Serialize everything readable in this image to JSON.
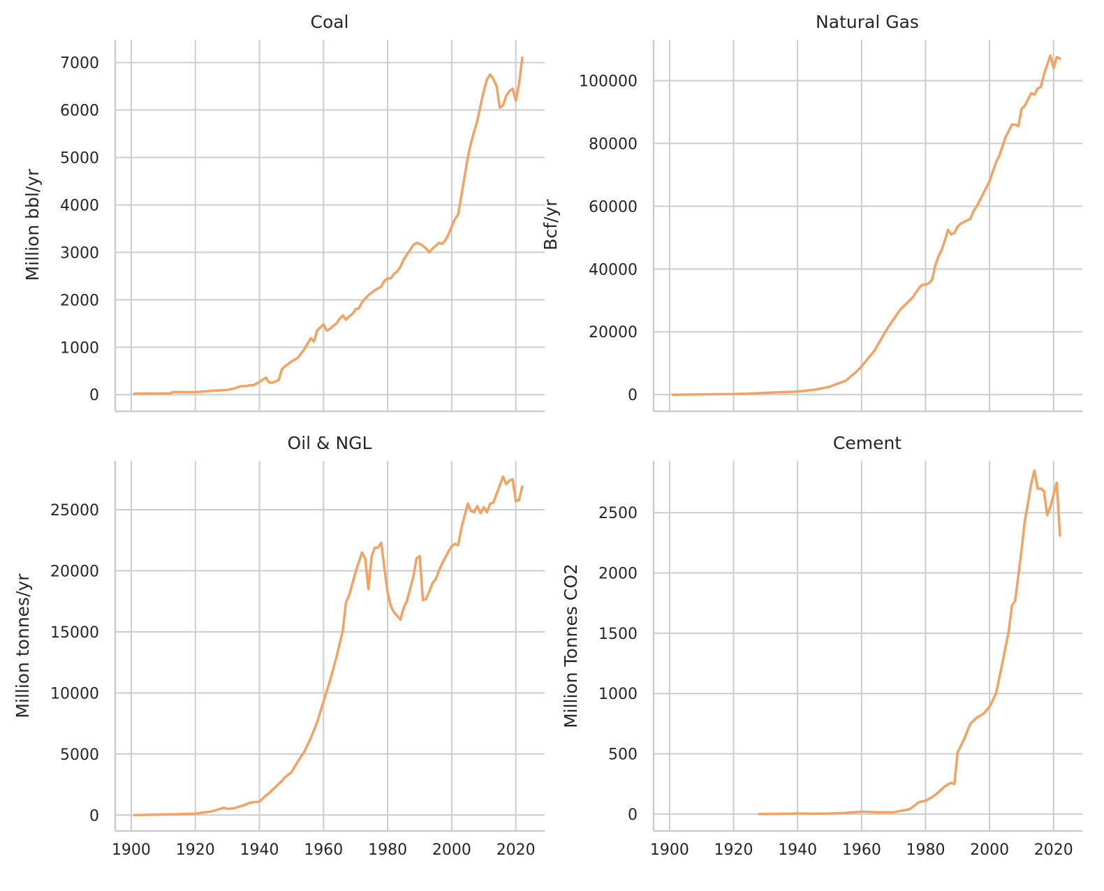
{
  "figure": {
    "line_color": "#f4a261",
    "grid_color": "#cccccc",
    "text_color": "#262626",
    "grid": true
  },
  "chart_data": [
    {
      "type": "line",
      "title": "Coal",
      "xlabel": "",
      "ylabel": "Million bbl/yr",
      "xlim": [
        1895,
        2029
      ],
      "ylim": [
        -350,
        7480
      ],
      "xticks": [
        1900,
        1920,
        1940,
        1960,
        1980,
        2000,
        2020
      ],
      "yticks": [
        0,
        1000,
        2000,
        3000,
        4000,
        5000,
        6000,
        7000
      ],
      "show_xticklabels": false,
      "series": [
        {
          "x": [
            1901,
            1905,
            1910,
            1912,
            1913,
            1920,
            1925,
            1930,
            1932,
            1934,
            1936,
            1937,
            1938,
            1940,
            1942,
            1943,
            1944,
            1946,
            1947,
            1948,
            1950,
            1952,
            1954,
            1956,
            1957,
            1958,
            1959,
            1960,
            1961,
            1962,
            1963,
            1964,
            1965,
            1966,
            1967,
            1968,
            1969,
            1970,
            1971,
            1972,
            1974,
            1976,
            1978,
            1979,
            1980,
            1981,
            1982,
            1983,
            1984,
            1985,
            1986,
            1987,
            1988,
            1989,
            1990,
            1991,
            1992,
            1993,
            1994,
            1995,
            1996,
            1997,
            1998,
            1999,
            2000,
            2001,
            2002,
            2003,
            2004,
            2005,
            2006,
            2007,
            2008,
            2009,
            2010,
            2011,
            2012,
            2013,
            2014,
            2015,
            2016,
            2017,
            2018,
            2019,
            2020,
            2021,
            2022
          ],
          "y": [
            20,
            25,
            25,
            25,
            55,
            55,
            80,
            100,
            130,
            175,
            185,
            200,
            195,
            270,
            360,
            260,
            250,
            310,
            540,
            600,
            700,
            780,
            960,
            1190,
            1120,
            1350,
            1420,
            1480,
            1350,
            1390,
            1450,
            1500,
            1600,
            1670,
            1580,
            1650,
            1700,
            1800,
            1820,
            1950,
            2100,
            2200,
            2280,
            2400,
            2450,
            2450,
            2550,
            2600,
            2700,
            2850,
            2950,
            3050,
            3150,
            3200,
            3180,
            3140,
            3080,
            3000,
            3080,
            3140,
            3200,
            3180,
            3250,
            3380,
            3550,
            3700,
            3800,
            4200,
            4600,
            5000,
            5300,
            5550,
            5780,
            6100,
            6400,
            6650,
            6750,
            6650,
            6500,
            6050,
            6100,
            6300,
            6400,
            6450,
            6200,
            6550,
            7100
          ]
        }
      ]
    },
    {
      "type": "line",
      "title": "Natural Gas",
      "xlabel": "",
      "ylabel": "Bcf/yr",
      "xlim": [
        1895,
        2029
      ],
      "ylim": [
        -5300,
        113000
      ],
      "xticks": [
        1900,
        1920,
        1940,
        1960,
        1980,
        2000,
        2020
      ],
      "yticks": [
        0,
        20000,
        40000,
        60000,
        80000,
        100000
      ],
      "show_xticklabels": false,
      "series": [
        {
          "x": [
            1901,
            1910,
            1920,
            1925,
            1930,
            1935,
            1940,
            1945,
            1950,
            1952,
            1955,
            1958,
            1960,
            1962,
            1964,
            1966,
            1968,
            1970,
            1972,
            1974,
            1976,
            1978,
            1979,
            1980,
            1981,
            1982,
            1983,
            1984,
            1985,
            1986,
            1987,
            1988,
            1989,
            1990,
            1991,
            1992,
            1993,
            1994,
            1995,
            1996,
            1997,
            1998,
            1999,
            2000,
            2001,
            2002,
            2003,
            2004,
            2005,
            2006,
            2007,
            2008,
            2009,
            2010,
            2011,
            2012,
            2013,
            2014,
            2015,
            2016,
            2017,
            2018,
            2019,
            2020,
            2021,
            2022
          ],
          "y": [
            0,
            100,
            200,
            300,
            600,
            800,
            1000,
            1500,
            2500,
            3300,
            4400,
            7000,
            9000,
            11500,
            14000,
            17500,
            21000,
            24000,
            27000,
            29000,
            31000,
            34000,
            35000,
            35000,
            35500,
            36500,
            41000,
            44000,
            46000,
            49000,
            52500,
            51000,
            51500,
            53500,
            54500,
            55000,
            55500,
            56000,
            58500,
            60000,
            62000,
            64000,
            66000,
            68000,
            71000,
            74000,
            76000,
            79000,
            82000,
            84000,
            86000,
            86000,
            85500,
            91000,
            92000,
            94000,
            96000,
            95500,
            97500,
            98000,
            102000,
            105000,
            108000,
            104000,
            107500,
            107000
          ]
        }
      ]
    },
    {
      "type": "line",
      "title": "Oil & NGL",
      "xlabel": "",
      "ylabel": "Million tonnes/yr",
      "xlim": [
        1895,
        2029
      ],
      "ylim": [
        -1300,
        29000
      ],
      "xticks": [
        1900,
        1920,
        1940,
        1960,
        1980,
        2000,
        2020
      ],
      "yticks": [
        0,
        5000,
        10000,
        15000,
        20000,
        25000
      ],
      "show_xticklabels": true,
      "series": [
        {
          "x": [
            1901,
            1905,
            1910,
            1915,
            1920,
            1925,
            1929,
            1930,
            1932,
            1935,
            1937,
            1938,
            1940,
            1942,
            1943,
            1945,
            1947,
            1948,
            1950,
            1952,
            1954,
            1956,
            1958,
            1960,
            1962,
            1964,
            1966,
            1967,
            1968,
            1970,
            1972,
            1973,
            1974,
            1975,
            1976,
            1977,
            1978,
            1979,
            1980,
            1981,
            1982,
            1983,
            1984,
            1985,
            1986,
            1987,
            1988,
            1989,
            1990,
            1991,
            1992,
            1993,
            1994,
            1995,
            1996,
            1997,
            1998,
            1999,
            2000,
            2001,
            2002,
            2003,
            2004,
            2005,
            2006,
            2007,
            2008,
            2009,
            2010,
            2011,
            2012,
            2013,
            2014,
            2015,
            2016,
            2017,
            2018,
            2019,
            2020,
            2021,
            2022
          ],
          "y": [
            0,
            20,
            50,
            80,
            120,
            300,
            600,
            500,
            550,
            800,
            1000,
            1050,
            1100,
            1600,
            1800,
            2300,
            2800,
            3100,
            3500,
            4400,
            5200,
            6300,
            7600,
            9300,
            11000,
            12900,
            15100,
            17400,
            18000,
            19900,
            21500,
            21000,
            18500,
            21200,
            21900,
            21900,
            22300,
            20200,
            18200,
            17100,
            16600,
            16300,
            16000,
            17000,
            17500,
            18500,
            19500,
            21000,
            21200,
            17600,
            17700,
            18300,
            19000,
            19300,
            20000,
            20600,
            21100,
            21600,
            22000,
            22200,
            22100,
            23500,
            24500,
            25500,
            24900,
            24800,
            25300,
            24700,
            25200,
            24800,
            25500,
            25600,
            26300,
            27000,
            27700,
            27100,
            27400,
            27500,
            25700,
            25800,
            26900
          ]
        }
      ]
    },
    {
      "type": "line",
      "title": "Cement",
      "xlabel": "",
      "ylabel": "Million Tonnes CO2",
      "xlim": [
        1895,
        2029
      ],
      "ylim": [
        -140,
        2930
      ],
      "xticks": [
        1900,
        1920,
        1940,
        1960,
        1980,
        2000,
        2020
      ],
      "yticks": [
        0,
        500,
        1000,
        1500,
        2000,
        2500
      ],
      "show_xticklabels": true,
      "series": [
        {
          "x": [
            1928,
            1935,
            1940,
            1945,
            1950,
            1955,
            1960,
            1965,
            1970,
            1972,
            1975,
            1978,
            1980,
            1982,
            1984,
            1986,
            1988,
            1989,
            1990,
            1992,
            1994,
            1996,
            1998,
            2000,
            2002,
            2004,
            2006,
            2007,
            2008,
            2010,
            2011,
            2012,
            2013,
            2014,
            2015,
            2016,
            2017,
            2018,
            2019,
            2020,
            2021,
            2022
          ],
          "y": [
            0,
            2,
            5,
            3,
            5,
            10,
            20,
            15,
            15,
            25,
            40,
            100,
            110,
            140,
            180,
            230,
            260,
            250,
            510,
            620,
            750,
            800,
            830,
            890,
            1000,
            1250,
            1520,
            1730,
            1770,
            2190,
            2430,
            2580,
            2740,
            2850,
            2700,
            2700,
            2680,
            2480,
            2550,
            2650,
            2750,
            2310
          ]
        }
      ]
    }
  ]
}
